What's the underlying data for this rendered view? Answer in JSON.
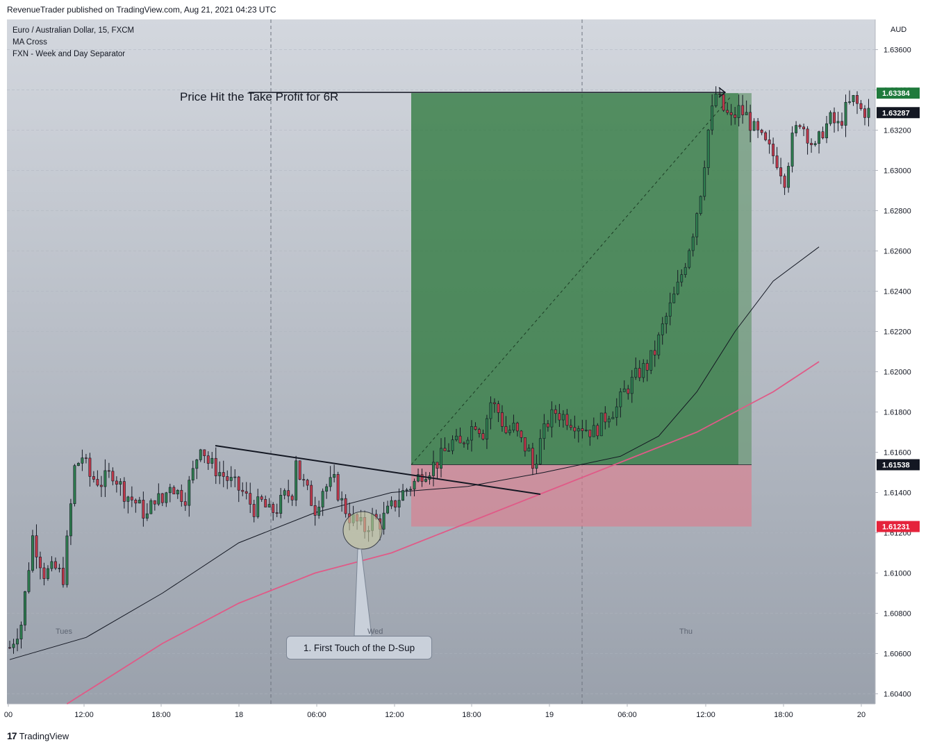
{
  "header": {
    "publisher_line": "RevenueTrader published on TradingView.com, Aug 21, 2021 04:23 UTC"
  },
  "legend": {
    "symbol": "Euro / Australian Dollar, 15, FXCM",
    "indicator_1": "MA Cross",
    "indicator_2": "FXN - Week and Day Separator"
  },
  "footer": {
    "brand": "TradingView",
    "logo_glyph": "17"
  },
  "annotations": {
    "take_profit": "Price Hit the Take Profit for 6R",
    "first_touch": "1. First Touch of the D-Sup"
  },
  "day_labels": [
    "Tues",
    "Wed",
    "Thu"
  ],
  "chart_data": {
    "type": "candlestick",
    "symbol": "EURAUD",
    "currency_label": "AUD",
    "y_range": [
      1.6035,
      1.6375
    ],
    "y_ticks": [
      "1.63600",
      "1.63400",
      "1.63200",
      "1.63000",
      "1.62800",
      "1.62600",
      "1.62400",
      "1.62200",
      "1.62000",
      "1.61800",
      "1.61600",
      "1.61400",
      "1.61200",
      "1.61000",
      "1.60800",
      "1.60600",
      "1.60400"
    ],
    "x_ticks": [
      "00",
      "12:00",
      "18:00",
      "18",
      "06:00",
      "12:00",
      "18:00",
      "19",
      "06:00",
      "12:00",
      "18:00",
      "20"
    ],
    "price_tags": [
      {
        "label": "1.63384",
        "value": 1.63384,
        "color": "#1f7a3c"
      },
      {
        "label": "1.63287",
        "value": 1.63287,
        "color": "#131722"
      },
      {
        "label": "1.61538",
        "value": 1.61538,
        "color": "#131722"
      },
      {
        "label": "1.61231",
        "value": 1.61231,
        "color": "#e5233b"
      }
    ],
    "position": {
      "entry": 1.61538,
      "stop_loss": 1.61231,
      "take_profit": 1.63384,
      "reward_risk": "6R"
    },
    "colors": {
      "up": "#2e7d4f",
      "down": "#c0394b",
      "profit_zone": "#2f7a3f",
      "loss_zone": "#e07a8a",
      "ma_fast": "#131722",
      "ma_slow": "#e05a87"
    },
    "ohlc_path": [
      [
        0,
        1.6063
      ],
      [
        3,
        1.6075
      ],
      [
        6,
        1.6118
      ],
      [
        9,
        1.61
      ],
      [
        12,
        1.6102
      ],
      [
        14,
        1.6098
      ],
      [
        15,
        1.6115
      ],
      [
        17,
        1.6152
      ],
      [
        19,
        1.6158
      ],
      [
        21,
        1.6148
      ],
      [
        24,
        1.6145
      ],
      [
        27,
        1.615
      ],
      [
        30,
        1.614
      ],
      [
        33,
        1.6135
      ],
      [
        36,
        1.6128
      ],
      [
        38,
        1.6138
      ],
      [
        40,
        1.6135
      ],
      [
        42,
        1.6145
      ],
      [
        44,
        1.614
      ],
      [
        46,
        1.6138
      ],
      [
        48,
        1.615
      ],
      [
        50,
        1.6165
      ],
      [
        52,
        1.6155
      ],
      [
        55,
        1.615
      ],
      [
        58,
        1.6145
      ],
      [
        61,
        1.614
      ],
      [
        64,
        1.6132
      ],
      [
        66,
        1.6135
      ],
      [
        68,
        1.613
      ],
      [
        70,
        1.6132
      ],
      [
        72,
        1.6138
      ],
      [
        74,
        1.614
      ],
      [
        75,
        1.6158
      ],
      [
        76,
        1.6148
      ],
      [
        78,
        1.614
      ],
      [
        80,
        1.6132
      ],
      [
        82,
        1.6142
      ],
      [
        85,
        1.6145
      ],
      [
        87,
        1.6135
      ],
      [
        89,
        1.6128
      ],
      [
        91,
        1.6125
      ],
      [
        93,
        1.6122
      ],
      [
        95,
        1.6127
      ],
      [
        97,
        1.6125
      ],
      [
        99,
        1.613
      ],
      [
        101,
        1.6135
      ],
      [
        103,
        1.614
      ],
      [
        106,
        1.6145
      ],
      [
        108,
        1.615
      ],
      [
        110,
        1.6152
      ],
      [
        112,
        1.6155
      ],
      [
        114,
        1.616
      ],
      [
        116,
        1.6165
      ],
      [
        118,
        1.6163
      ],
      [
        120,
        1.617
      ],
      [
        122,
        1.6175
      ],
      [
        124,
        1.617
      ],
      [
        126,
        1.6185
      ],
      [
        128,
        1.618
      ],
      [
        130,
        1.617
      ],
      [
        132,
        1.6172
      ],
      [
        134,
        1.6165
      ],
      [
        136,
        1.616
      ],
      [
        137,
        1.6152
      ],
      [
        139,
        1.6165
      ],
      [
        141,
        1.6175
      ],
      [
        143,
        1.618
      ],
      [
        145,
        1.6178
      ],
      [
        147,
        1.6176
      ],
      [
        149,
        1.6174
      ],
      [
        151,
        1.6172
      ],
      [
        153,
        1.617
      ],
      [
        155,
        1.6175
      ],
      [
        157,
        1.618
      ],
      [
        159,
        1.6182
      ],
      [
        161,
        1.619
      ],
      [
        163,
        1.6195
      ],
      [
        165,
        1.62
      ],
      [
        167,
        1.6203
      ],
      [
        169,
        1.621
      ],
      [
        171,
        1.6222
      ],
      [
        173,
        1.6232
      ],
      [
        175,
        1.6242
      ],
      [
        177,
        1.6255
      ],
      [
        179,
        1.627
      ],
      [
        181,
        1.629
      ],
      [
        183,
        1.632
      ],
      [
        185,
        1.6338
      ],
      [
        187,
        1.633
      ],
      [
        189,
        1.6325
      ],
      [
        191,
        1.633
      ],
      [
        193,
        1.6327
      ],
      [
        195,
        1.632
      ],
      [
        197,
        1.6315
      ],
      [
        199,
        1.631
      ],
      [
        201,
        1.6305
      ],
      [
        203,
        1.6296
      ],
      [
        205,
        1.6315
      ],
      [
        207,
        1.6325
      ],
      [
        209,
        1.6318
      ],
      [
        211,
        1.631
      ],
      [
        213,
        1.632
      ],
      [
        215,
        1.6325
      ],
      [
        217,
        1.6322
      ],
      [
        219,
        1.633
      ],
      [
        221,
        1.6335
      ],
      [
        223,
        1.633
      ],
      [
        225,
        1.6329
      ]
    ],
    "ma_fast_path": [
      [
        0,
        1.6057
      ],
      [
        20,
        1.6068
      ],
      [
        40,
        1.609
      ],
      [
        60,
        1.6115
      ],
      [
        80,
        1.613
      ],
      [
        100,
        1.614
      ],
      [
        120,
        1.6143
      ],
      [
        140,
        1.615
      ],
      [
        160,
        1.6158
      ],
      [
        170,
        1.6168
      ],
      [
        180,
        1.619
      ],
      [
        190,
        1.622
      ],
      [
        200,
        1.6245
      ],
      [
        212,
        1.6262
      ]
    ],
    "ma_slow_path": [
      [
        15,
        1.6035
      ],
      [
        40,
        1.6065
      ],
      [
        60,
        1.6085
      ],
      [
        80,
        1.61
      ],
      [
        100,
        1.611
      ],
      [
        120,
        1.6125
      ],
      [
        140,
        1.614
      ],
      [
        160,
        1.6155
      ],
      [
        180,
        1.617
      ],
      [
        200,
        1.619
      ],
      [
        212,
        1.6205
      ]
    ]
  }
}
